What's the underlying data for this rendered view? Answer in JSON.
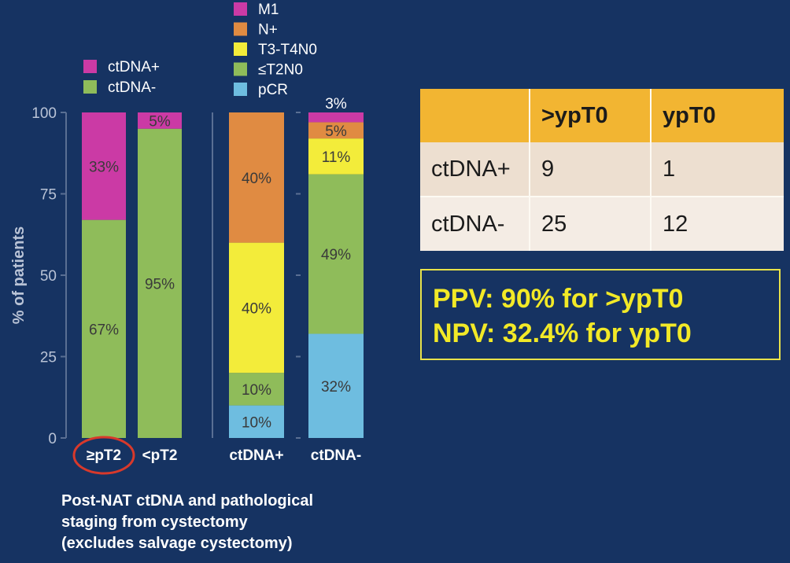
{
  "chart_data": [
    {
      "type": "bar",
      "stacked": true,
      "categories": [
        "≥pT2",
        "<pT2"
      ],
      "series": [
        {
          "name": "ctDNA-",
          "color": "#8fbc5a",
          "values": [
            67,
            95
          ],
          "labels": [
            "67%",
            "95%"
          ]
        },
        {
          "name": "ctDNA+",
          "color": "#cb3aa5",
          "values": [
            33,
            5
          ],
          "labels": [
            "33%",
            "5%"
          ]
        }
      ],
      "legend": [
        "ctDNA+",
        "ctDNA-"
      ],
      "ylabel": "% of patients",
      "ylim": [
        0,
        100
      ],
      "yticks": [
        "0",
        "25",
        "50",
        "75",
        "100"
      ],
      "highlighted_category": "≥pT2"
    },
    {
      "type": "bar",
      "stacked": true,
      "categories": [
        "ctDNA+",
        "ctDNA-"
      ],
      "series": [
        {
          "name": "pCR",
          "color": "#6ebde0",
          "values": [
            10,
            32
          ],
          "labels": [
            "10%",
            "32%"
          ]
        },
        {
          "name": "≤T2N0",
          "color": "#8fbc5a",
          "values": [
            10,
            49
          ],
          "labels": [
            "10%",
            "49%"
          ]
        },
        {
          "name": "T3-T4N0",
          "color": "#f3ec3a",
          "values": [
            40,
            11
          ],
          "labels": [
            "40%",
            "11%"
          ]
        },
        {
          "name": "N+",
          "color": "#e08b42",
          "values": [
            40,
            5
          ],
          "labels": [
            "40%",
            "5%"
          ]
        },
        {
          "name": "M1",
          "color": "#cb3aa5",
          "values": [
            0,
            3
          ],
          "labels": [
            "",
            "3%"
          ]
        }
      ],
      "legend": [
        "M1",
        "N+",
        "T3-T4N0",
        "≤T2N0",
        "pCR"
      ],
      "ylim": [
        0,
        100
      ]
    }
  ],
  "caption": "Post-NAT ctDNA and pathological\nstaging from cystectomy\n (excludes salvage cystectomy)",
  "table": {
    "headers": [
      "",
      ">ypT0",
      "ypT0"
    ],
    "rows": [
      [
        "ctDNA+",
        "9",
        "1"
      ],
      [
        "ctDNA-",
        "25",
        "12"
      ]
    ]
  },
  "summary": {
    "ppv": "PPV: 90% for >ypT0",
    "npv": "NPV: 32.4% for ypT0"
  },
  "colors": {
    "background": "#163362",
    "magenta": "#cb3aa5",
    "green": "#8fbc5a",
    "yellow": "#f3ec3a",
    "orange": "#e08b42",
    "light_blue": "#6ebde0",
    "table_header": "#f2b532",
    "summary_text": "#f2e927",
    "highlight_circle": "#d8392b"
  }
}
